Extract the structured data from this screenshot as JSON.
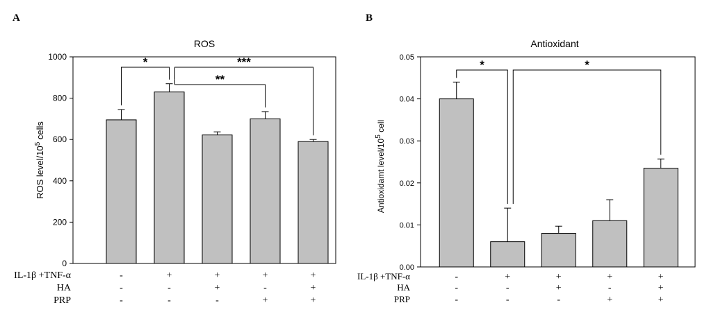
{
  "figure": {
    "panel_a_letter": "A",
    "panel_b_letter": "B",
    "condition_labels": [
      "IL-1β +TNF-α",
      "HA",
      "PRP"
    ]
  },
  "chart_data": [
    {
      "type": "bar",
      "panel": "A",
      "title": "ROS",
      "ylabel": "ROS level/10",
      "ylabel_sup": "5",
      "ylabel_tail": " cells",
      "ylim": [
        0,
        1000
      ],
      "yticks": [
        "0",
        "200",
        "400",
        "600",
        "800",
        "1000"
      ],
      "categories": [
        "1",
        "2",
        "3",
        "4",
        "5"
      ],
      "values": [
        695,
        830,
        622,
        700,
        590
      ],
      "errors": [
        50,
        40,
        15,
        35,
        10
      ],
      "bar_color": "#c0c0c0",
      "conditions": {
        "il1b_tnfa": [
          "-",
          "+",
          "+",
          "+",
          "+"
        ],
        "ha": [
          "-",
          "-",
          "+",
          "-",
          "+"
        ],
        "prp": [
          "-",
          "-",
          "-",
          "+",
          "+"
        ]
      },
      "significance": [
        {
          "from": 0,
          "to": 1,
          "label": "*"
        },
        {
          "from": 1,
          "to": 4,
          "label": "***"
        },
        {
          "from": 1,
          "to": 3,
          "label": "**"
        }
      ]
    },
    {
      "type": "bar",
      "panel": "B",
      "title": "Antioxidant",
      "ylabel": "Antioxidamt level/10",
      "ylabel_sup": "5",
      "ylabel_tail": " cell",
      "ylim": [
        0,
        0.05
      ],
      "yticks": [
        "0.00",
        "0.01",
        "0.02",
        "0.03",
        "0.04",
        "0.05"
      ],
      "categories": [
        "1",
        "2",
        "3",
        "4",
        "5"
      ],
      "values": [
        0.04,
        0.006,
        0.008,
        0.011,
        0.0235
      ],
      "errors": [
        0.004,
        0.008,
        0.0017,
        0.005,
        0.0022
      ],
      "bar_color": "#c0c0c0",
      "conditions": {
        "il1b_tnfa": [
          "-",
          "+",
          "+",
          "+",
          "+"
        ],
        "ha": [
          "-",
          "-",
          "+",
          "-",
          "+"
        ],
        "prp": [
          "-",
          "-",
          "-",
          "+",
          "+"
        ]
      },
      "significance": [
        {
          "from": 0,
          "to": 1,
          "label": "*"
        },
        {
          "from": 1,
          "to": 4,
          "label": "*"
        }
      ]
    }
  ]
}
